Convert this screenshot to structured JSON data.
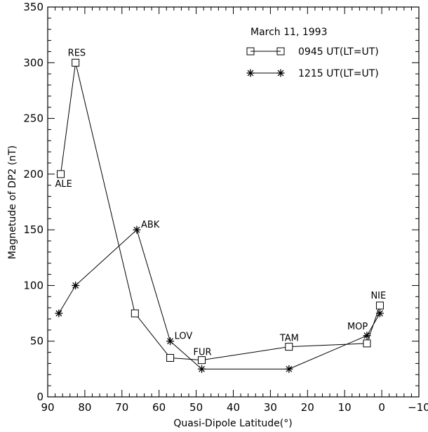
{
  "chart_data": {
    "type": "line",
    "title": "March 11, 1993",
    "xlabel": "Quasi-Dipole Latitude(°)",
    "ylabel": "Magnetude of DP2 (nT)",
    "xlim": [
      90,
      -10
    ],
    "ylim": [
      0,
      350
    ],
    "xticks": [
      90,
      80,
      70,
      60,
      50,
      40,
      30,
      20,
      10,
      0,
      -10
    ],
    "yticks": [
      0,
      50,
      100,
      150,
      200,
      250,
      300,
      350
    ],
    "grid": false,
    "legend_position": "top-right",
    "series": [
      {
        "name": "0945 UT(LT=UT)",
        "marker": "square",
        "points": [
          {
            "x": 86.5,
            "y": 200
          },
          {
            "x": 82.5,
            "y": 300
          },
          {
            "x": 66.5,
            "y": 75
          },
          {
            "x": 57,
            "y": 35
          },
          {
            "x": 48.5,
            "y": 33
          },
          {
            "x": 25,
            "y": 45
          },
          {
            "x": 4,
            "y": 48
          },
          {
            "x": 0.5,
            "y": 82
          }
        ]
      },
      {
        "name": "1215 UT(LT=UT)",
        "marker": "asterisk",
        "points": [
          {
            "x": 87,
            "y": 75
          },
          {
            "x": 82.5,
            "y": 100
          },
          {
            "x": 66,
            "y": 150
          },
          {
            "x": 57,
            "y": 50
          },
          {
            "x": 48.5,
            "y": 25
          },
          {
            "x": 25,
            "y": 25
          },
          {
            "x": 4,
            "y": 55
          },
          {
            "x": 0.5,
            "y": 75
          }
        ]
      }
    ],
    "annotations": [
      {
        "text": "RES",
        "x": 82.5,
        "y": 300
      },
      {
        "text": "ALE",
        "x": 86.5,
        "y": 200
      },
      {
        "text": "ABK",
        "x": 66,
        "y": 150
      },
      {
        "text": "LOV",
        "x": 57,
        "y": 50
      },
      {
        "text": "FUR",
        "x": 48.5,
        "y": 33
      },
      {
        "text": "TAM",
        "x": 25,
        "y": 45
      },
      {
        "text": "MOP",
        "x": 4,
        "y": 55
      },
      {
        "text": "NIE",
        "x": 0.5,
        "y": 82
      }
    ]
  }
}
